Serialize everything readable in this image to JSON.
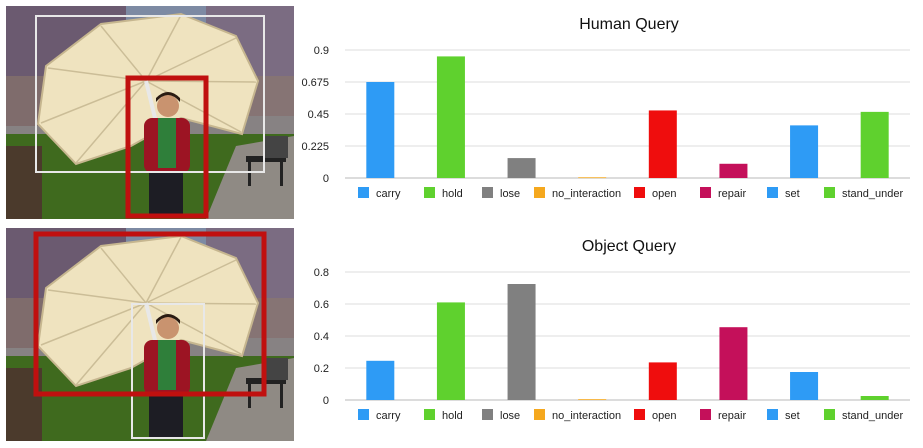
{
  "chart_data": [
    {
      "type": "bar",
      "title": "Human Query",
      "categories": [
        "carry",
        "hold",
        "lose",
        "no_interaction",
        "open",
        "repair",
        "set",
        "stand_under"
      ],
      "values": [
        0.675,
        0.855,
        0.14,
        0.005,
        0.475,
        0.1,
        0.37,
        0.465
      ],
      "ylim": [
        0,
        0.9
      ],
      "yticks": [
        "0",
        "0.225",
        "0.45",
        "0.675",
        "0.9"
      ],
      "ytick_values": [
        0,
        0.225,
        0.45,
        0.675,
        0.9
      ],
      "colors": [
        "#2e9bf5",
        "#5fd12e",
        "#808080",
        "#f5a81e",
        "#ef0d0d",
        "#c4105a",
        "#2e9bf5",
        "#5fd12e"
      ],
      "grid": true,
      "legend_position": "bottom"
    },
    {
      "type": "bar",
      "title": "Object Query",
      "categories": [
        "carry",
        "hold",
        "lose",
        "no_interaction",
        "open",
        "repair",
        "set",
        "stand_under"
      ],
      "values": [
        0.245,
        0.61,
        0.725,
        0.005,
        0.235,
        0.455,
        0.175,
        0.025
      ],
      "ylim": [
        0,
        0.8
      ],
      "yticks": [
        "0",
        "0.2",
        "0.4",
        "0.6",
        "0.8"
      ],
      "ytick_values": [
        0,
        0.2,
        0.4,
        0.6,
        0.8
      ],
      "colors": [
        "#2e9bf5",
        "#5fd12e",
        "#808080",
        "#f5a81e",
        "#ef0d0d",
        "#c4105a",
        "#2e9bf5",
        "#5fd12e"
      ],
      "grid": true,
      "legend_position": "bottom"
    }
  ],
  "photos": [
    {
      "focus": "human",
      "highlight_color": "#c0100f"
    },
    {
      "focus": "object",
      "highlight_color": "#c0100f"
    }
  ]
}
